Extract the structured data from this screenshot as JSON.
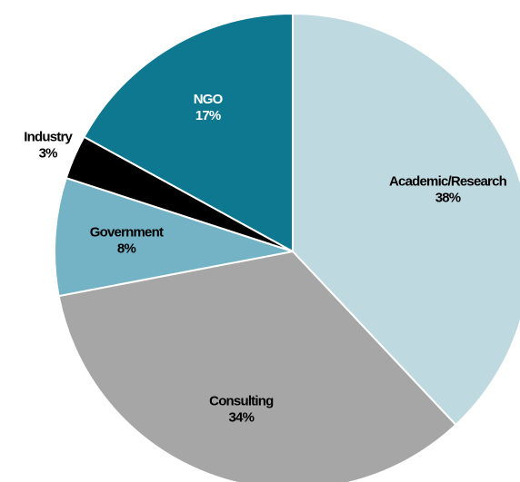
{
  "chart_data": {
    "type": "pie",
    "categories": [
      "Academic/Research",
      "Consulting",
      "Government",
      "Industry",
      "NGO"
    ],
    "values": [
      38,
      34,
      8,
      3,
      17
    ],
    "value_labels": [
      "38%",
      "34%",
      "8%",
      "3%",
      "17%"
    ],
    "colors": [
      "#bfd9e0",
      "#a6a6a6",
      "#74b3c5",
      "#000000",
      "#0f7891"
    ]
  }
}
